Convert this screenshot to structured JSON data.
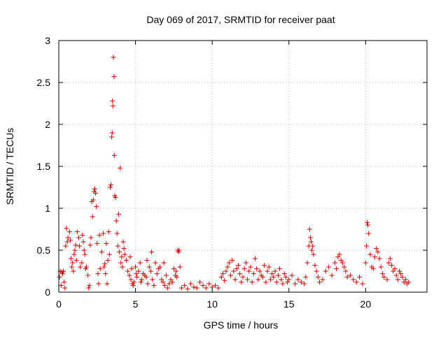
{
  "chart_data": {
    "type": "scatter",
    "title": "Day 069 of 2017, SRMTID for receiver paat",
    "xlabel": "GPS time / hours",
    "ylabel": "SRMTID / TECUs",
    "xlim": [
      0,
      24
    ],
    "ylim": [
      0,
      3
    ],
    "grid": true,
    "marker": "+",
    "colors": {
      "series": "#cc0000",
      "grid": "#bbbbbb",
      "axis": "#000000"
    },
    "x_ticks": [
      0,
      5,
      10,
      15,
      20
    ],
    "x_tick_labels": [
      "0",
      "5",
      "10",
      "15",
      "20"
    ],
    "y_ticks": [
      0,
      0.5,
      1,
      1.5,
      2,
      2.5,
      3
    ],
    "y_tick_labels": [
      "0",
      "0.5",
      "1",
      "1.5",
      "2",
      "2.5",
      "3"
    ],
    "series": [
      {
        "name": "SRMTID",
        "points": [
          [
            0.05,
            0.18
          ],
          [
            0.1,
            0.25
          ],
          [
            0.15,
            0.08
          ],
          [
            0.2,
            0.24
          ],
          [
            0.25,
            0.22
          ],
          [
            0.3,
            0.25
          ],
          [
            0.35,
            0.12
          ],
          [
            0.4,
            0.05
          ],
          [
            0.45,
            0.55
          ],
          [
            0.5,
            0.76
          ],
          [
            0.55,
            0.6
          ],
          [
            0.6,
            0.65
          ],
          [
            0.7,
            0.72
          ],
          [
            0.75,
            0.62
          ],
          [
            0.8,
            0.4
          ],
          [
            0.85,
            0.3
          ],
          [
            0.9,
            0.35
          ],
          [
            0.95,
            0.25
          ],
          [
            1.0,
            0.45
          ],
          [
            1.05,
            0.5
          ],
          [
            1.1,
            0.56
          ],
          [
            1.15,
            0.38
          ],
          [
            1.2,
            0.72
          ],
          [
            1.3,
            0.65
          ],
          [
            1.35,
            0.55
          ],
          [
            1.4,
            0.3
          ],
          [
            1.5,
            0.35
          ],
          [
            1.55,
            0.68
          ],
          [
            1.6,
            0.6
          ],
          [
            1.65,
            0.5
          ],
          [
            1.7,
            0.45
          ],
          [
            1.75,
            0.28
          ],
          [
            1.8,
            0.3
          ],
          [
            1.9,
            0.2
          ],
          [
            1.95,
            0.05
          ],
          [
            2.0,
            0.08
          ],
          [
            2.05,
            0.56
          ],
          [
            2.1,
            0.65
          ],
          [
            2.15,
            1.08
          ],
          [
            2.2,
            0.9
          ],
          [
            2.25,
            1.1
          ],
          [
            2.3,
            1.2
          ],
          [
            2.35,
            1.23
          ],
          [
            2.4,
            1.18
          ],
          [
            2.45,
            1.02
          ],
          [
            2.5,
            0.58
          ],
          [
            2.55,
            0.22
          ],
          [
            2.6,
            0.1
          ],
          [
            2.65,
            0.68
          ],
          [
            2.7,
            0.28
          ],
          [
            2.8,
            0.48
          ],
          [
            2.9,
            0.7
          ],
          [
            2.95,
            0.3
          ],
          [
            3.0,
            0.34
          ],
          [
            3.05,
            0.22
          ],
          [
            3.1,
            0.58
          ],
          [
            3.15,
            0.1
          ],
          [
            3.2,
            0.38
          ],
          [
            3.25,
            0.72
          ],
          [
            3.3,
            0.45
          ],
          [
            3.35,
            1.25
          ],
          [
            3.4,
            1.28
          ],
          [
            3.45,
            1.85
          ],
          [
            3.48,
            1.9
          ],
          [
            3.5,
            2.28
          ],
          [
            3.53,
            2.22
          ],
          [
            3.56,
            2.8
          ],
          [
            3.6,
            2.57
          ],
          [
            3.62,
            1.63
          ],
          [
            3.65,
            1.15
          ],
          [
            3.7,
            1.13
          ],
          [
            3.75,
            0.85
          ],
          [
            3.8,
            0.7
          ],
          [
            3.85,
            0.55
          ],
          [
            3.9,
            0.93
          ],
          [
            3.95,
            0.48
          ],
          [
            4.0,
            1.48
          ],
          [
            4.05,
            0.35
          ],
          [
            4.1,
            0.42
          ],
          [
            4.15,
            0.3
          ],
          [
            4.2,
            0.6
          ],
          [
            4.25,
            0.52
          ],
          [
            4.3,
            0.45
          ],
          [
            4.4,
            0.38
          ],
          [
            4.5,
            0.25
          ],
          [
            4.6,
            0.2
          ],
          [
            4.65,
            0.42
          ],
          [
            4.7,
            0.15
          ],
          [
            4.75,
            0.28
          ],
          [
            4.8,
            0.1
          ],
          [
            4.85,
            0.08
          ],
          [
            4.9,
            0.12
          ],
          [
            5.0,
            0.3
          ],
          [
            5.05,
            0.22
          ],
          [
            5.1,
            0.18
          ],
          [
            5.2,
            0.25
          ],
          [
            5.3,
            0.35
          ],
          [
            5.35,
            0.12
          ],
          [
            5.4,
            0.15
          ],
          [
            5.5,
            0.22
          ],
          [
            5.6,
            0.2
          ],
          [
            5.7,
            0.18
          ],
          [
            5.75,
            0.38
          ],
          [
            5.8,
            0.1
          ],
          [
            5.9,
            0.3
          ],
          [
            6.0,
            0.25
          ],
          [
            6.05,
            0.48
          ],
          [
            6.1,
            0.15
          ],
          [
            6.2,
            0.08
          ],
          [
            6.3,
            0.35
          ],
          [
            6.4,
            0.22
          ],
          [
            6.5,
            0.28
          ],
          [
            6.6,
            0.3
          ],
          [
            6.7,
            0.15
          ],
          [
            6.8,
            0.12
          ],
          [
            6.85,
            0.35
          ],
          [
            6.9,
            0.08
          ],
          [
            7.0,
            0.2
          ],
          [
            7.1,
            0.05
          ],
          [
            7.2,
            0.1
          ],
          [
            7.3,
            0.15
          ],
          [
            7.4,
            0.12
          ],
          [
            7.5,
            0.28
          ],
          [
            7.6,
            0.2
          ],
          [
            7.65,
            0.25
          ],
          [
            7.7,
            0.18
          ],
          [
            7.75,
            0.5
          ],
          [
            7.8,
            0.48
          ],
          [
            7.85,
            0.5
          ],
          [
            7.9,
            0.3
          ],
          [
            8.0,
            0.05
          ],
          [
            8.2,
            0.08
          ],
          [
            8.4,
            0.04
          ],
          [
            8.6,
            0.1
          ],
          [
            8.8,
            0.06
          ],
          [
            9.0,
            0.05
          ],
          [
            9.2,
            0.12
          ],
          [
            9.4,
            0.08
          ],
          [
            9.6,
            0.05
          ],
          [
            9.8,
            0.1
          ],
          [
            10.0,
            0.06
          ],
          [
            10.2,
            0.08
          ],
          [
            10.4,
            0.05
          ],
          [
            10.6,
            0.18
          ],
          [
            10.7,
            0.22
          ],
          [
            10.8,
            0.14
          ],
          [
            10.9,
            0.25
          ],
          [
            11.0,
            0.3
          ],
          [
            11.1,
            0.35
          ],
          [
            11.2,
            0.2
          ],
          [
            11.3,
            0.38
          ],
          [
            11.4,
            0.25
          ],
          [
            11.5,
            0.15
          ],
          [
            11.6,
            0.28
          ],
          [
            11.7,
            0.32
          ],
          [
            11.8,
            0.22
          ],
          [
            11.9,
            0.12
          ],
          [
            12.0,
            0.18
          ],
          [
            12.1,
            0.28
          ],
          [
            12.2,
            0.35
          ],
          [
            12.3,
            0.15
          ],
          [
            12.4,
            0.25
          ],
          [
            12.5,
            0.3
          ],
          [
            12.6,
            0.12
          ],
          [
            12.7,
            0.22
          ],
          [
            12.8,
            0.4
          ],
          [
            12.9,
            0.28
          ],
          [
            13.0,
            0.15
          ],
          [
            13.1,
            0.25
          ],
          [
            13.2,
            0.2
          ],
          [
            13.3,
            0.18
          ],
          [
            13.4,
            0.32
          ],
          [
            13.5,
            0.12
          ],
          [
            13.6,
            0.25
          ],
          [
            13.7,
            0.3
          ],
          [
            13.8,
            0.15
          ],
          [
            13.9,
            0.22
          ],
          [
            14.0,
            0.18
          ],
          [
            14.1,
            0.25
          ],
          [
            14.2,
            0.12
          ],
          [
            14.3,
            0.2
          ],
          [
            14.4,
            0.28
          ],
          [
            14.5,
            0.15
          ],
          [
            14.6,
            0.1
          ],
          [
            14.7,
            0.22
          ],
          [
            14.8,
            0.18
          ],
          [
            14.9,
            0.12
          ],
          [
            15.0,
            0.15
          ],
          [
            15.2,
            0.2
          ],
          [
            15.4,
            0.1
          ],
          [
            15.6,
            0.15
          ],
          [
            15.8,
            0.12
          ],
          [
            16.0,
            0.1
          ],
          [
            16.1,
            0.18
          ],
          [
            16.2,
            0.35
          ],
          [
            16.3,
            0.55
          ],
          [
            16.35,
            0.75
          ],
          [
            16.4,
            0.65
          ],
          [
            16.45,
            0.6
          ],
          [
            16.5,
            0.5
          ],
          [
            16.55,
            0.55
          ],
          [
            16.6,
            0.45
          ],
          [
            16.7,
            0.32
          ],
          [
            16.8,
            0.25
          ],
          [
            16.9,
            0.18
          ],
          [
            17.0,
            0.12
          ],
          [
            17.2,
            0.15
          ],
          [
            17.4,
            0.25
          ],
          [
            17.6,
            0.3
          ],
          [
            17.8,
            0.2
          ],
          [
            18.0,
            0.35
          ],
          [
            18.1,
            0.28
          ],
          [
            18.2,
            0.42
          ],
          [
            18.3,
            0.45
          ],
          [
            18.4,
            0.38
          ],
          [
            18.5,
            0.35
          ],
          [
            18.6,
            0.3
          ],
          [
            18.7,
            0.25
          ],
          [
            18.8,
            0.18
          ],
          [
            19.0,
            0.2
          ],
          [
            19.2,
            0.15
          ],
          [
            19.4,
            0.12
          ],
          [
            19.6,
            0.18
          ],
          [
            19.8,
            0.1
          ],
          [
            20.0,
            0.35
          ],
          [
            20.05,
            0.55
          ],
          [
            20.1,
            0.83
          ],
          [
            20.15,
            0.8
          ],
          [
            20.2,
            0.7
          ],
          [
            20.3,
            0.45
          ],
          [
            20.4,
            0.3
          ],
          [
            20.5,
            0.28
          ],
          [
            20.6,
            0.42
          ],
          [
            20.7,
            0.52
          ],
          [
            20.8,
            0.48
          ],
          [
            20.9,
            0.4
          ],
          [
            21.0,
            0.3
          ],
          [
            21.1,
            0.22
          ],
          [
            21.2,
            0.18
          ],
          [
            21.4,
            0.15
          ],
          [
            21.5,
            0.35
          ],
          [
            21.6,
            0.4
          ],
          [
            21.7,
            0.32
          ],
          [
            21.8,
            0.25
          ],
          [
            21.9,
            0.28
          ],
          [
            22.0,
            0.2
          ],
          [
            22.1,
            0.15
          ],
          [
            22.2,
            0.25
          ],
          [
            22.3,
            0.22
          ],
          [
            22.4,
            0.18
          ],
          [
            22.5,
            0.12
          ],
          [
            22.6,
            0.15
          ],
          [
            22.7,
            0.1
          ],
          [
            22.8,
            0.12
          ]
        ]
      }
    ]
  }
}
